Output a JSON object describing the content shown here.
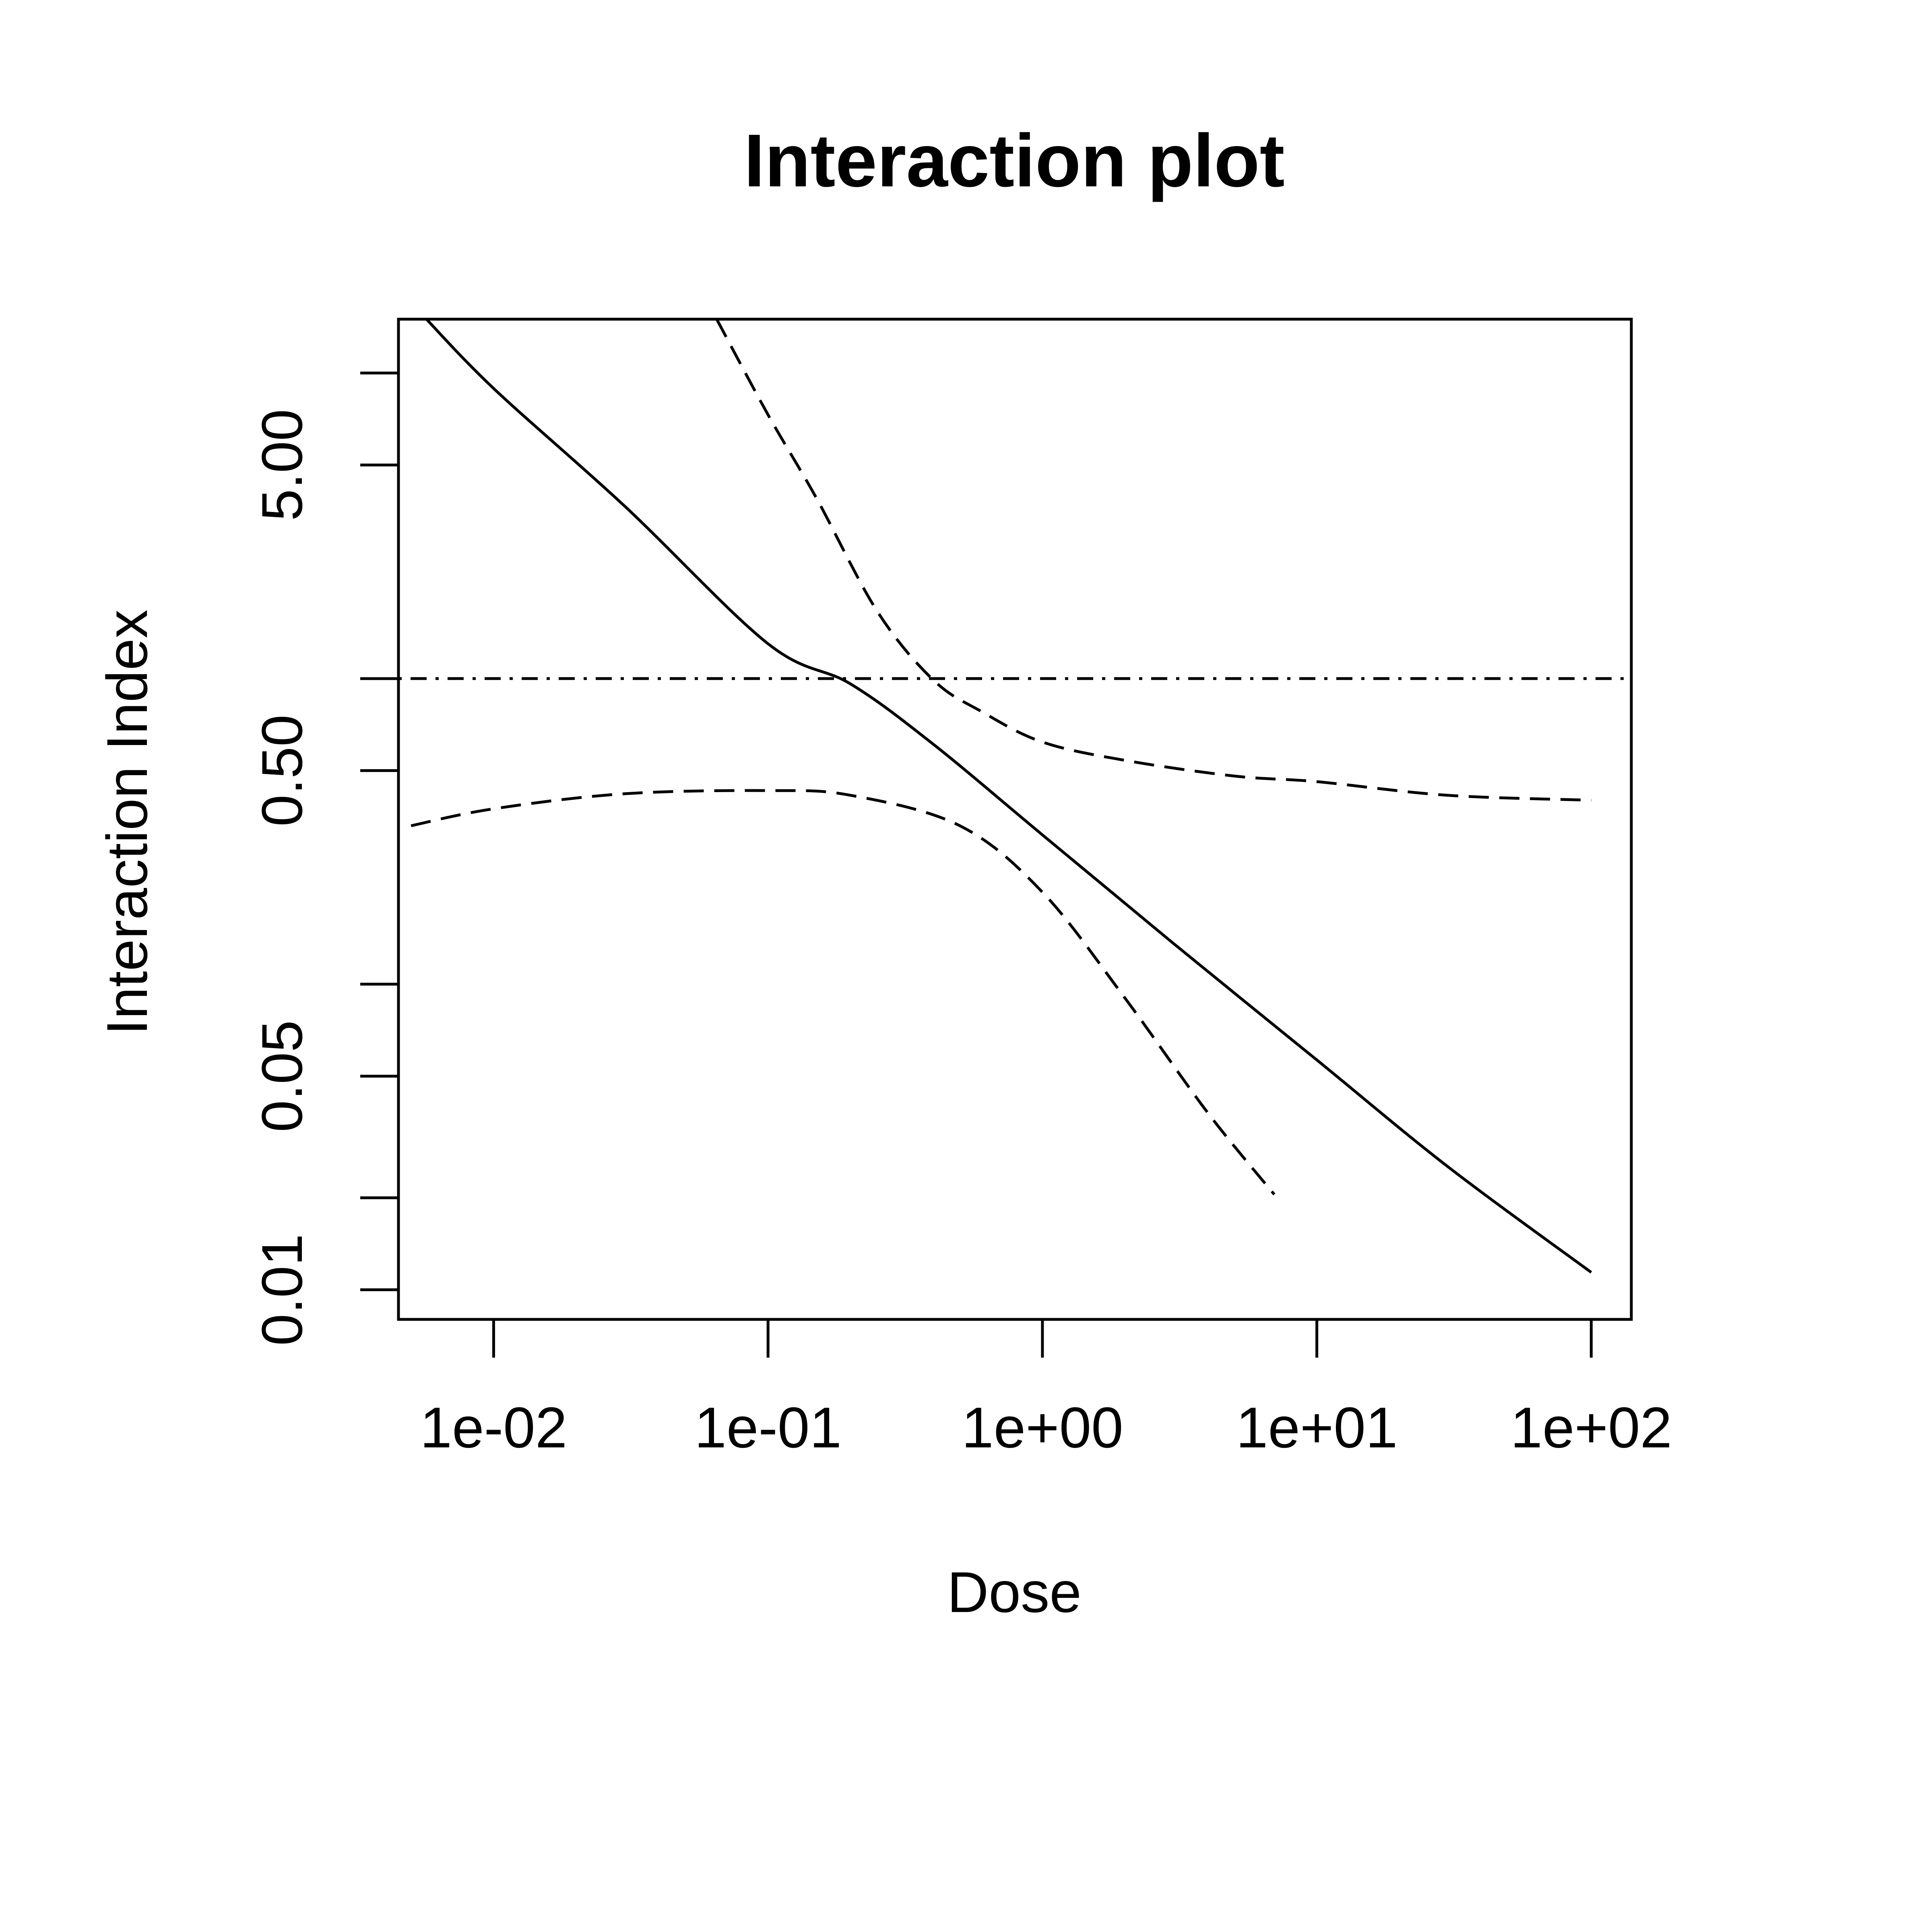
{
  "chart_data": {
    "type": "line",
    "title": "Interaction plot",
    "xlabel": "Dose",
    "ylabel": "Interaction Index",
    "x_scale": "log",
    "y_scale": "log",
    "xlim": [
      0.0045,
      140
    ],
    "ylim": [
      0.008,
      15
    ],
    "x_ticks": [
      {
        "value": 0.01,
        "label": "1e-02"
      },
      {
        "value": 0.1,
        "label": "1e-01"
      },
      {
        "value": 1,
        "label": "1e+00"
      },
      {
        "value": 10,
        "label": "1e+01"
      },
      {
        "value": 100,
        "label": "1e+02"
      }
    ],
    "y_ticks": [
      {
        "value": 0.01,
        "label": "0.01"
      },
      {
        "value": 0.02,
        "label": ""
      },
      {
        "value": 0.05,
        "label": "0.05"
      },
      {
        "value": 0.1,
        "label": ""
      },
      {
        "value": 0.5,
        "label": "0.50"
      },
      {
        "value": 1,
        "label": ""
      },
      {
        "value": 5,
        "label": "5.00"
      },
      {
        "value": 10,
        "label": ""
      }
    ],
    "grid": false,
    "series": [
      {
        "style": "solid",
        "x": [
          0.0055,
          0.01,
          0.03,
          0.1,
          0.2,
          0.4,
          1,
          3,
          10,
          30,
          100
        ],
        "y": [
          15.5,
          8.9,
          3.67,
          1.3,
          0.96,
          0.61,
          0.308,
          0.136,
          0.0565,
          0.0253,
          0.0114
        ]
      },
      {
        "style": "dashed",
        "x": [
          0.065,
          0.1,
          0.15,
          0.25,
          0.4,
          0.6,
          1,
          2,
          5,
          10,
          30,
          100
        ],
        "y": [
          15.0,
          7.3,
          3.9,
          1.66,
          0.99,
          0.78,
          0.62,
          0.54,
          0.48,
          0.46,
          0.415,
          0.4
        ]
      },
      {
        "style": "dashed",
        "x": [
          0.005,
          0.01,
          0.03,
          0.1,
          0.2,
          0.5,
          1,
          2,
          4,
          7
        ],
        "y": [
          0.33,
          0.375,
          0.42,
          0.43,
          0.415,
          0.33,
          0.2,
          0.09,
          0.038,
          0.0205
        ]
      },
      {
        "style": "dotdash",
        "x": [
          0.0045,
          140
        ],
        "y": [
          1,
          1
        ]
      }
    ]
  }
}
